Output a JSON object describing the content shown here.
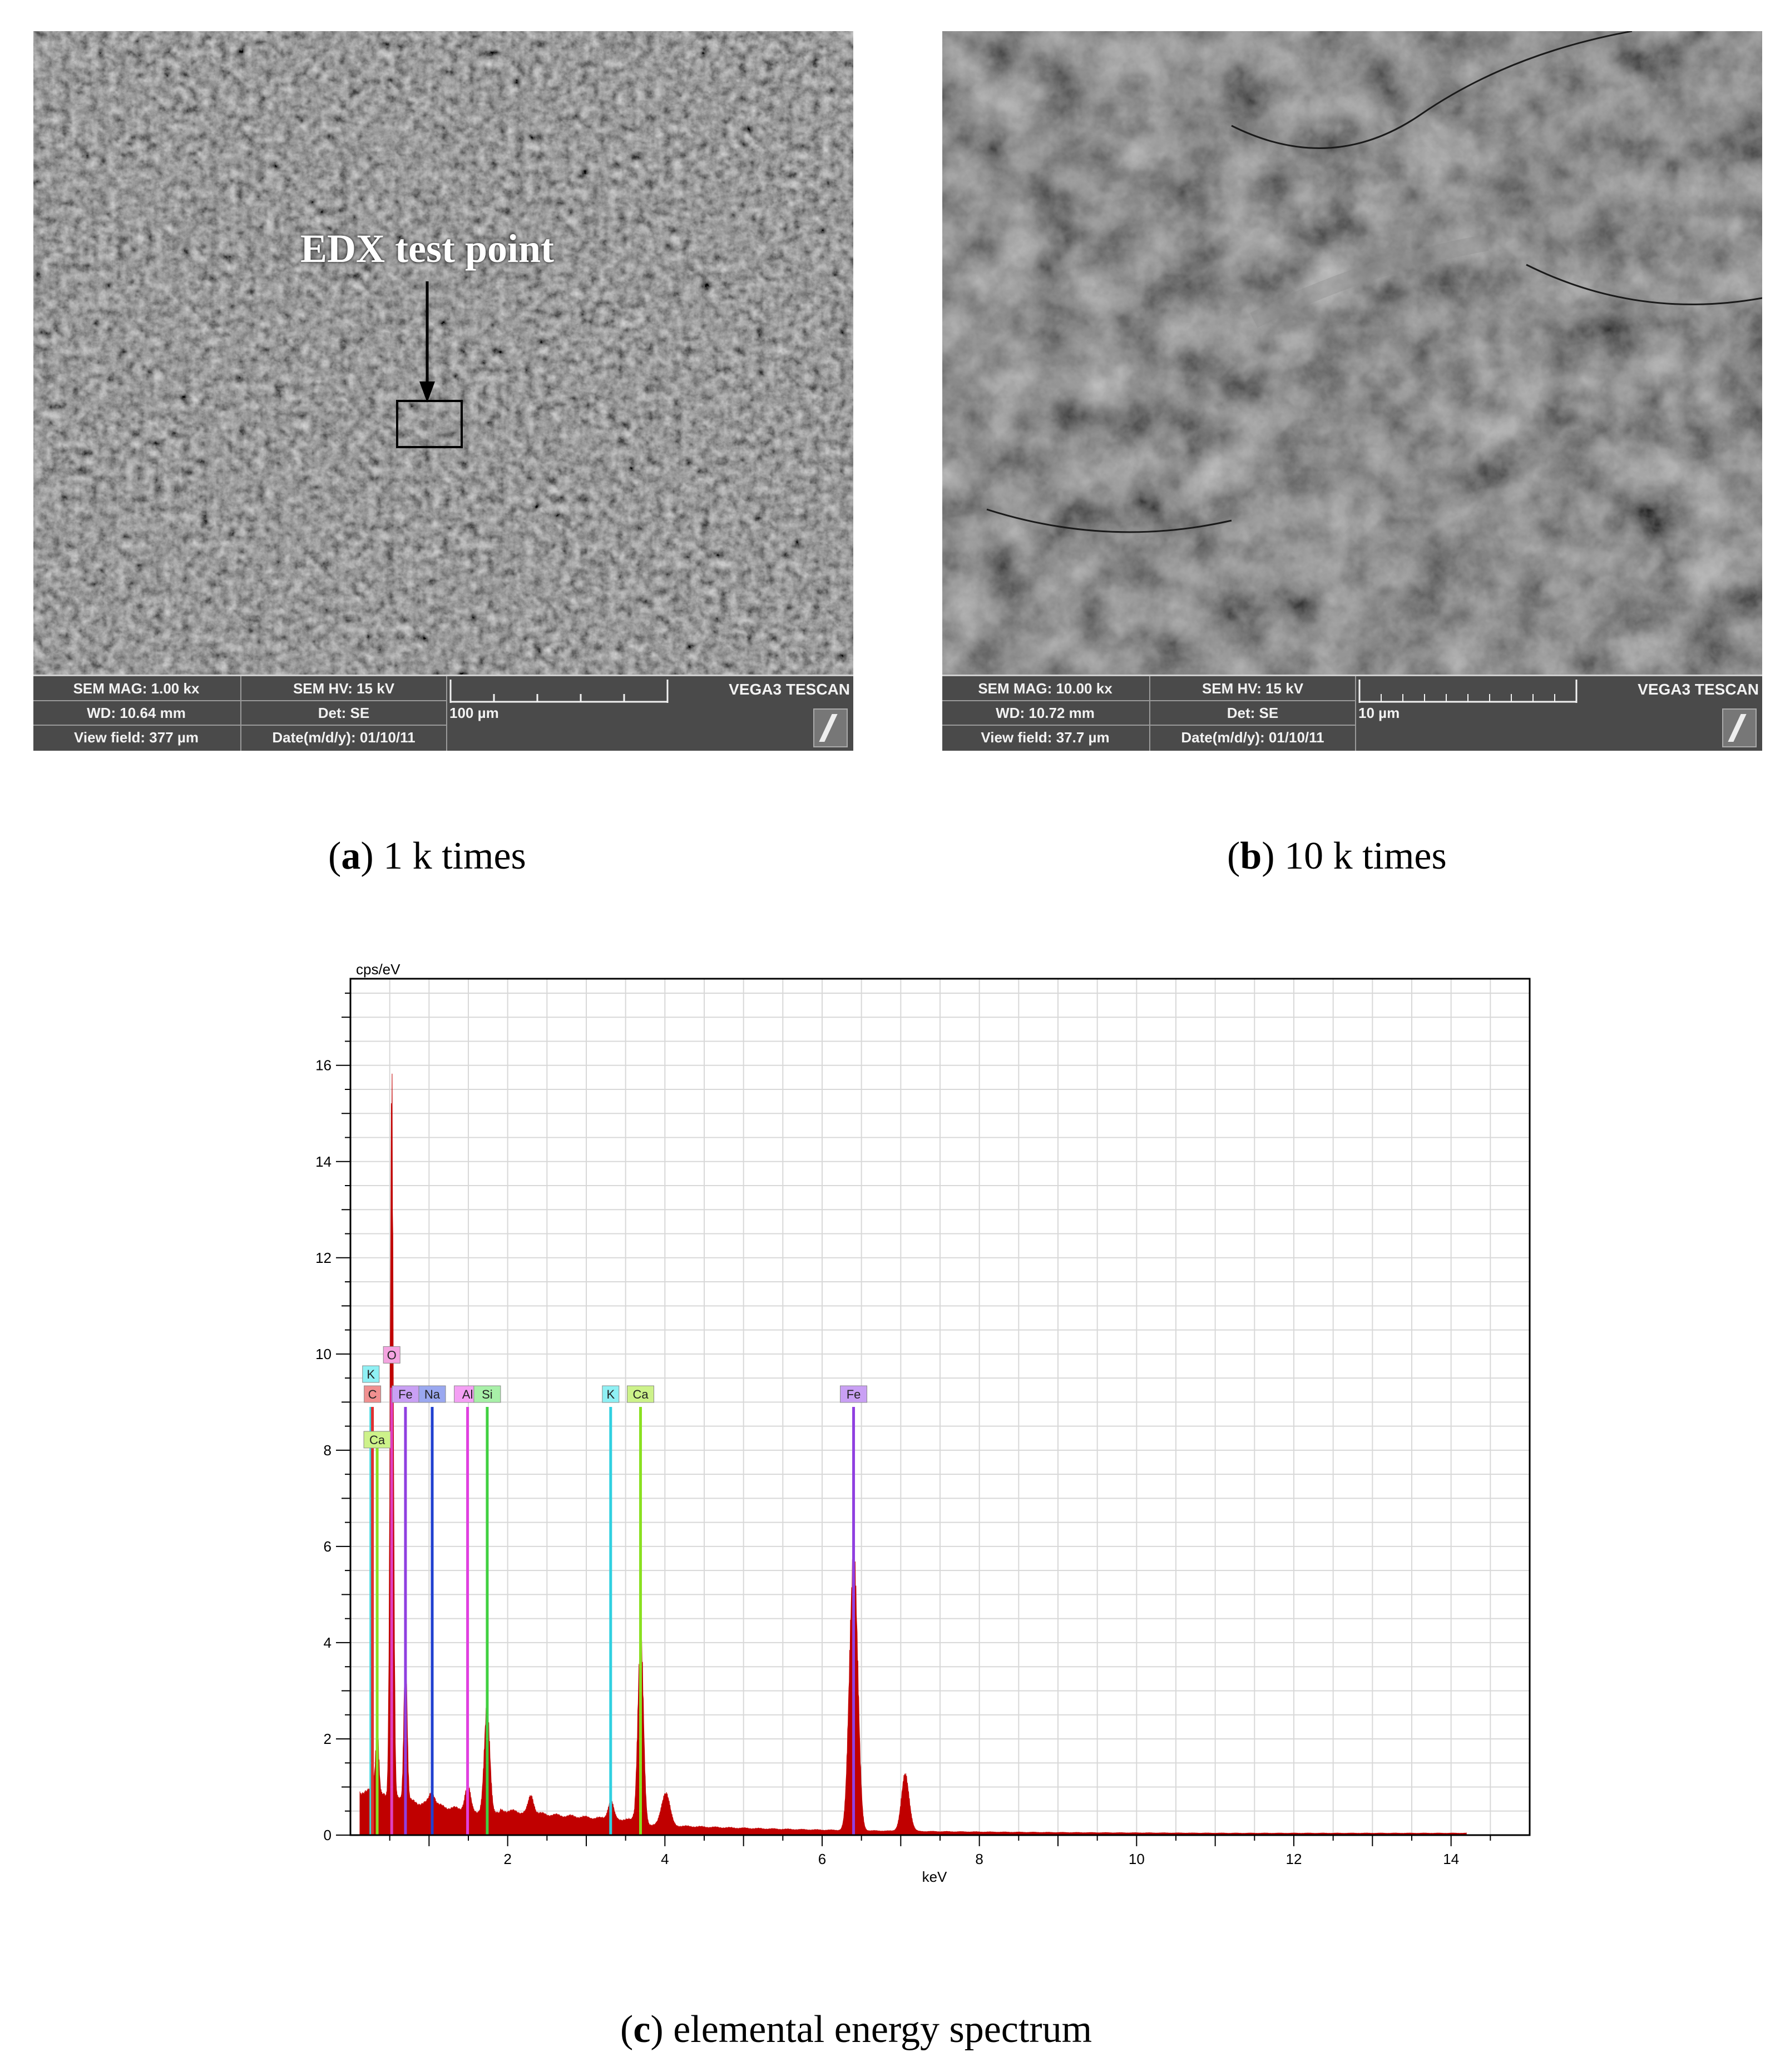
{
  "panels": {
    "a": {
      "annotation": "EDX test point",
      "databar": {
        "mag": "SEM MAG: 1.00 kx",
        "wd": "WD: 10.64 mm",
        "viewfield": "View field: 377 µm",
        "hv": "SEM HV: 15 kV",
        "det": "Det: SE",
        "date": "Date(m/d/y): 01/10/11",
        "scale": "100 µm",
        "brand": "VEGA3 TESCAN"
      },
      "caption_letter": "a",
      "caption_text": "1 k times"
    },
    "b": {
      "databar": {
        "mag": "SEM MAG: 10.00 kx",
        "wd": "WD: 10.72 mm",
        "viewfield": "View field: 37.7 µm",
        "hv": "SEM HV: 15 kV",
        "det": "Det: SE",
        "date": "Date(m/d/y): 01/10/11",
        "scale": "10 µm",
        "brand": "VEGA3 TESCAN"
      },
      "caption_letter": "b",
      "caption_text": "10 k times"
    },
    "c": {
      "caption_letter": "c",
      "caption_text": "elemental energy spectrum"
    }
  },
  "chart_data": {
    "type": "area",
    "title": "",
    "xlabel": "keV",
    "ylabel": "cps/eV",
    "xlim": [
      0,
      15
    ],
    "ylim": [
      0,
      17.8
    ],
    "x_ticks": [
      2,
      4,
      6,
      8,
      10,
      12,
      14
    ],
    "y_ticks": [
      0,
      2,
      4,
      6,
      8,
      10,
      12,
      14,
      16
    ],
    "grid": true,
    "fill_color": "#c00000",
    "peaks": [
      {
        "x": 0.28,
        "y": 1.2
      },
      {
        "x": 0.34,
        "y": 2.3
      },
      {
        "x": 0.525,
        "y": 16.0
      },
      {
        "x": 0.7,
        "y": 4.0
      },
      {
        "x": 1.04,
        "y": 0.9
      },
      {
        "x": 1.49,
        "y": 1.0
      },
      {
        "x": 1.74,
        "y": 2.6
      },
      {
        "x": 2.3,
        "y": 0.8
      },
      {
        "x": 3.31,
        "y": 0.7
      },
      {
        "x": 3.69,
        "y": 4.1
      },
      {
        "x": 4.01,
        "y": 0.9
      },
      {
        "x": 6.4,
        "y": 6.0
      },
      {
        "x": 7.06,
        "y": 1.2
      }
    ],
    "element_markers": [
      {
        "label": "K",
        "x": 0.26,
        "height": 8.9,
        "row": 0,
        "color": "#3ad6e0",
        "box": "#8ff0f4"
      },
      {
        "label": "C",
        "x": 0.28,
        "height": 8.9,
        "row": 1,
        "color": "#e03030",
        "box": "#f09090"
      },
      {
        "label": "Ca",
        "x": 0.34,
        "height": 8.3,
        "row": 2,
        "color": "#8ae020",
        "box": "#cdf28a"
      },
      {
        "label": "O",
        "x": 0.525,
        "height": 9.3,
        "row": 0,
        "color": "#e040c0",
        "box": "#f4a4e0"
      },
      {
        "label": "Fe",
        "x": 0.7,
        "height": 8.9,
        "row": 1,
        "color": "#9040e0",
        "box": "#c9a0f4"
      },
      {
        "label": "Na",
        "x": 1.04,
        "height": 8.9,
        "row": 1,
        "color": "#2040d0",
        "box": "#9aa8f0"
      },
      {
        "label": "Al",
        "x": 1.49,
        "height": 8.9,
        "row": 1,
        "color": "#e040e0",
        "box": "#f4a0f4"
      },
      {
        "label": "Si",
        "x": 1.74,
        "height": 8.9,
        "row": 1,
        "color": "#40d040",
        "box": "#a8f0a8"
      },
      {
        "label": "K",
        "x": 3.31,
        "height": 8.9,
        "row": 1,
        "color": "#30d0e0",
        "box": "#8ff0f4"
      },
      {
        "label": "Ca",
        "x": 3.69,
        "height": 8.9,
        "row": 1,
        "color": "#8ae020",
        "box": "#cdf28a"
      },
      {
        "label": "Fe",
        "x": 6.4,
        "height": 8.9,
        "row": 1,
        "color": "#9040e0",
        "box": "#c9a0f4"
      }
    ]
  }
}
